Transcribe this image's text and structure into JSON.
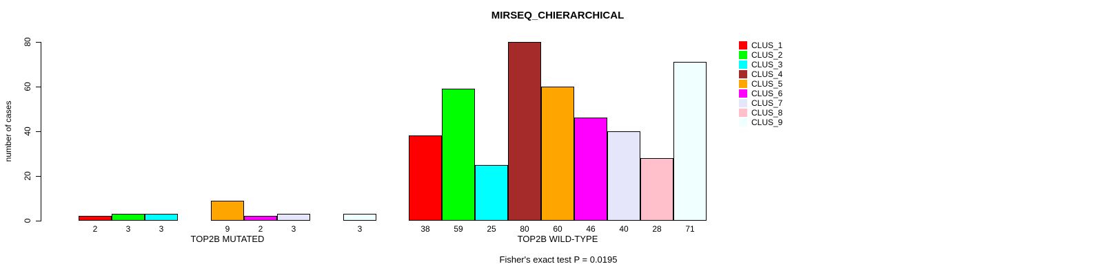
{
  "chart_data": {
    "type": "bar",
    "title": "MIRSEQ_CHIERARCHICAL",
    "ylabel": "number of cases",
    "ylim": [
      0,
      80
    ],
    "yticks": [
      0,
      20,
      40,
      60,
      80
    ],
    "grid": false,
    "legend_position": "right",
    "annotation": "Fisher's exact test P = 0.0195",
    "clusters": [
      "CLUS_1",
      "CLUS_2",
      "CLUS_3",
      "CLUS_4",
      "CLUS_5",
      "CLUS_6",
      "CLUS_7",
      "CLUS_8",
      "CLUS_9"
    ],
    "colors": [
      "#FF0000",
      "#00FF00",
      "#00FFFF",
      "#A52A2A",
      "#FFA500",
      "#FF00FF",
      "#E6E6FA",
      "#FFC0CB",
      "#F0FFFF"
    ],
    "bar_value_labels_shown": true,
    "zero_bars_hidden": true,
    "groups": [
      {
        "label": "TOP2B MUTATED",
        "values": [
          2,
          3,
          3,
          0,
          9,
          2,
          3,
          0,
          3
        ]
      },
      {
        "label": "TOP2B WILD-TYPE",
        "values": [
          38,
          59,
          25,
          80,
          60,
          46,
          40,
          28,
          71
        ]
      }
    ]
  }
}
